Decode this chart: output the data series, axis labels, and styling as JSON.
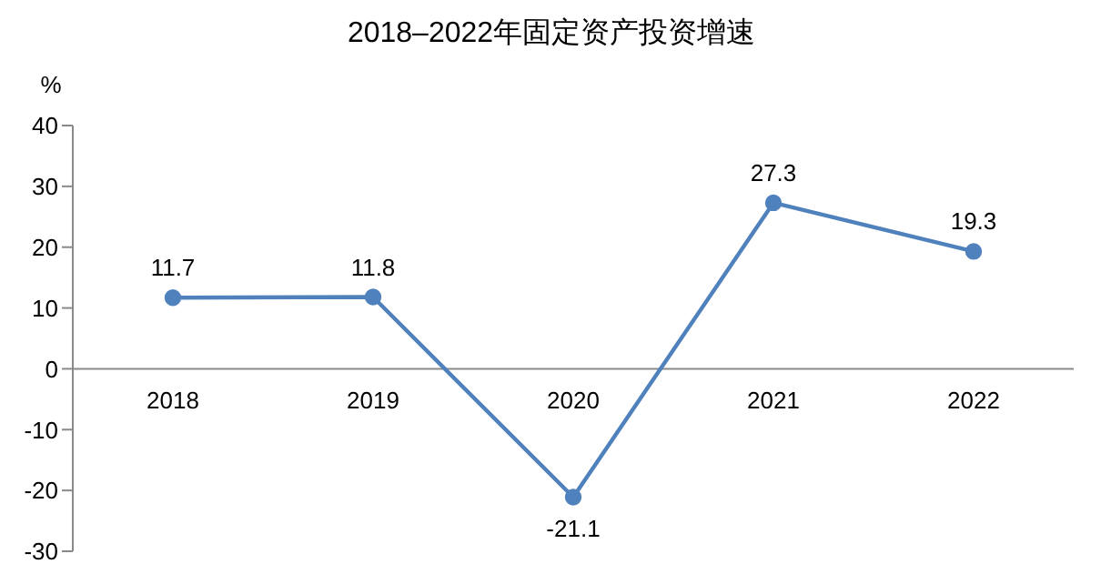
{
  "chart_data": {
    "type": "line",
    "title": "2018–2022年固定资产投资增速",
    "ylabel": "%",
    "categories": [
      "2018",
      "2019",
      "2020",
      "2021",
      "2022"
    ],
    "series": [
      {
        "color": "#4f81bd",
        "values": [
          11.7,
          11.8,
          -21.1,
          27.3,
          19.3
        ]
      }
    ],
    "ylim": [
      -30,
      40
    ],
    "yticks": [
      -30,
      -20,
      -10,
      0,
      10,
      20,
      30,
      40
    ],
    "grid": false,
    "legend": false,
    "marker": "circle",
    "line_style": "solid",
    "data_labels": true
  }
}
